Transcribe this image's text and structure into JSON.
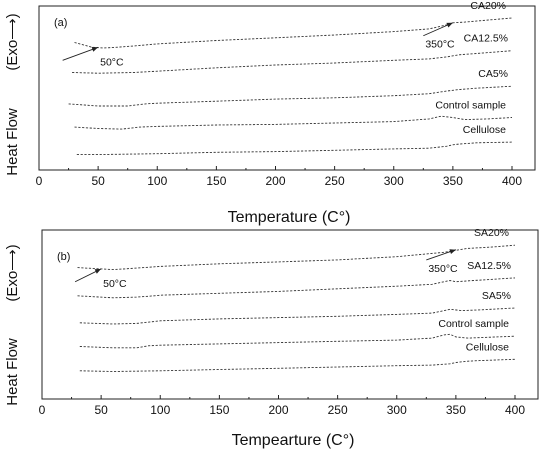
{
  "chart_data": [
    {
      "type": "line",
      "panel_label": "(a)",
      "xlabel": "Temperature (C°)",
      "ylabel": "Heat Flow",
      "ylabel_exo": "(Exo⟶)",
      "xlim": [
        0,
        420
      ],
      "xticks": [
        0,
        50,
        100,
        150,
        200,
        250,
        300,
        350,
        400
      ],
      "grid": false,
      "series": [
        {
          "name": "CA20%",
          "x": [
            30,
            45,
            55,
            65,
            80,
            100,
            150,
            200,
            250,
            300,
            330,
            345,
            350,
            360,
            380,
            400
          ],
          "y": [
            0.92,
            0.885,
            0.88,
            0.885,
            0.895,
            0.91,
            0.935,
            0.955,
            0.975,
            1.0,
            1.02,
            1.05,
            1.065,
            1.07,
            1.085,
            1.1
          ]
        },
        {
          "name": "CA12.5%",
          "x": [
            28,
            50,
            80,
            100,
            150,
            200,
            250,
            300,
            330,
            345,
            355,
            370,
            400
          ],
          "y": [
            0.7,
            0.695,
            0.7,
            0.71,
            0.735,
            0.755,
            0.77,
            0.79,
            0.8,
            0.815,
            0.83,
            0.84,
            0.86
          ]
        },
        {
          "name": "CA5%",
          "x": [
            25,
            50,
            75,
            90,
            100,
            150,
            200,
            250,
            300,
            330,
            345,
            355,
            370,
            400
          ],
          "y": [
            0.47,
            0.455,
            0.455,
            0.47,
            0.475,
            0.49,
            0.505,
            0.515,
            0.53,
            0.545,
            0.565,
            0.575,
            0.585,
            0.6
          ]
        },
        {
          "name": "Control sample",
          "x": [
            30,
            50,
            70,
            85,
            100,
            150,
            200,
            250,
            300,
            330,
            340,
            350,
            360,
            380,
            400
          ],
          "y": [
            0.3,
            0.29,
            0.285,
            0.3,
            0.305,
            0.315,
            0.32,
            0.33,
            0.34,
            0.36,
            0.38,
            0.37,
            0.355,
            0.36,
            0.37
          ]
        },
        {
          "name": "Cellulose",
          "x": [
            32,
            60,
            100,
            150,
            200,
            250,
            300,
            330,
            345,
            350,
            355,
            370,
            400
          ],
          "y": [
            0.1,
            0.1,
            0.105,
            0.115,
            0.12,
            0.13,
            0.14,
            0.145,
            0.16,
            0.17,
            0.175,
            0.185,
            0.19
          ]
        }
      ],
      "annotations": [
        {
          "text": "50°C",
          "at": [
            50,
            0.885
          ],
          "from": [
            20,
            0.79
          ]
        },
        {
          "text": "350°C",
          "at": [
            350,
            1.065
          ],
          "from": [
            325,
            0.97
          ]
        }
      ]
    },
    {
      "type": "line",
      "panel_label": "(b)",
      "xlabel": "Tempearture (C°)",
      "ylabel": "Heat Flow",
      "ylabel_exo": "(Exo⟶)",
      "xlim": [
        0,
        420
      ],
      "xticks": [
        0,
        50,
        100,
        150,
        200,
        250,
        300,
        350,
        400
      ],
      "grid": false,
      "series": [
        {
          "name": "SA20%",
          "x": [
            30,
            50,
            60,
            70,
            100,
            150,
            200,
            250,
            300,
            340,
            350,
            360,
            380,
            400
          ],
          "y": [
            0.9,
            0.89,
            0.885,
            0.89,
            0.91,
            0.93,
            0.945,
            0.96,
            0.985,
            1.02,
            1.035,
            1.05,
            1.06,
            1.075
          ]
        },
        {
          "name": "SA12.5%",
          "x": [
            30,
            60,
            80,
            95,
            100,
            150,
            200,
            250,
            300,
            330,
            340,
            345,
            350,
            365,
            400
          ],
          "y": [
            0.68,
            0.665,
            0.67,
            0.68,
            0.685,
            0.7,
            0.715,
            0.735,
            0.755,
            0.77,
            0.79,
            0.8,
            0.79,
            0.8,
            0.82
          ]
        },
        {
          "name": "SA5%",
          "x": [
            32,
            60,
            80,
            95,
            100,
            150,
            200,
            250,
            300,
            330,
            340,
            345,
            355,
            370,
            400
          ],
          "y": [
            0.47,
            0.46,
            0.465,
            0.48,
            0.485,
            0.5,
            0.51,
            0.52,
            0.535,
            0.545,
            0.565,
            0.575,
            0.565,
            0.57,
            0.585
          ]
        },
        {
          "name": "Control sample",
          "x": [
            32,
            60,
            80,
            90,
            100,
            150,
            200,
            250,
            300,
            330,
            340,
            345,
            350,
            360,
            400
          ],
          "y": [
            0.285,
            0.275,
            0.275,
            0.29,
            0.295,
            0.305,
            0.315,
            0.325,
            0.335,
            0.35,
            0.375,
            0.38,
            0.36,
            0.35,
            0.365
          ]
        },
        {
          "name": "Cellulose",
          "x": [
            32,
            60,
            100,
            150,
            200,
            250,
            300,
            330,
            345,
            350,
            360,
            370,
            400
          ],
          "y": [
            0.095,
            0.09,
            0.095,
            0.105,
            0.115,
            0.125,
            0.135,
            0.14,
            0.15,
            0.16,
            0.17,
            0.175,
            0.185
          ]
        }
      ],
      "annotations": [
        {
          "text": "50°C",
          "at": [
            50,
            0.89
          ],
          "from": [
            28,
            0.79
          ]
        },
        {
          "text": "350°C",
          "at": [
            350,
            1.04
          ],
          "from": [
            325,
            0.96
          ]
        }
      ]
    }
  ]
}
